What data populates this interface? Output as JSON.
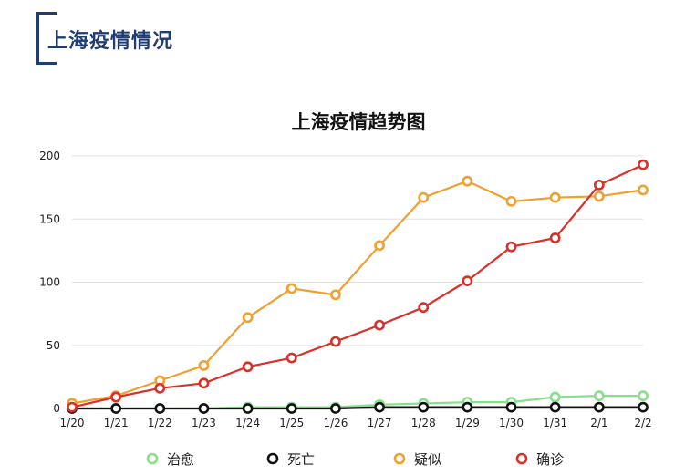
{
  "header": {
    "title": "上海疫情情况"
  },
  "chart_data": {
    "type": "line",
    "title": "上海疫情趋势图",
    "xlabel": "",
    "ylabel": "",
    "categories": [
      "1/20",
      "1/21",
      "1/22",
      "1/23",
      "1/24",
      "1/25",
      "1/26",
      "1/27",
      "1/28",
      "1/29",
      "1/30",
      "1/31",
      "2/1",
      "2/2"
    ],
    "ylim": [
      0,
      200
    ],
    "yticks": [
      "0",
      "50",
      "100",
      "150",
      "200"
    ],
    "grid": true,
    "legend_position": "bottom",
    "series": [
      {
        "name": "治愈",
        "color": "#86e08a",
        "values": [
          0,
          0,
          0,
          0,
          1,
          1,
          1,
          3,
          4,
          5,
          5,
          9,
          10,
          10
        ]
      },
      {
        "name": "死亡",
        "color": "#111111",
        "values": [
          0,
          0,
          0,
          0,
          0,
          0,
          0,
          1,
          1,
          1,
          1,
          1,
          1,
          1
        ]
      },
      {
        "name": "疑似",
        "color": "#f0a030",
        "values": [
          4,
          10,
          22,
          34,
          72,
          95,
          90,
          129,
          167,
          180,
          164,
          167,
          168,
          173
        ]
      },
      {
        "name": "确诊",
        "color": "#d9302a",
        "values": [
          1,
          9,
          16,
          20,
          33,
          40,
          53,
          66,
          80,
          101,
          128,
          135,
          177,
          193
        ]
      }
    ]
  }
}
